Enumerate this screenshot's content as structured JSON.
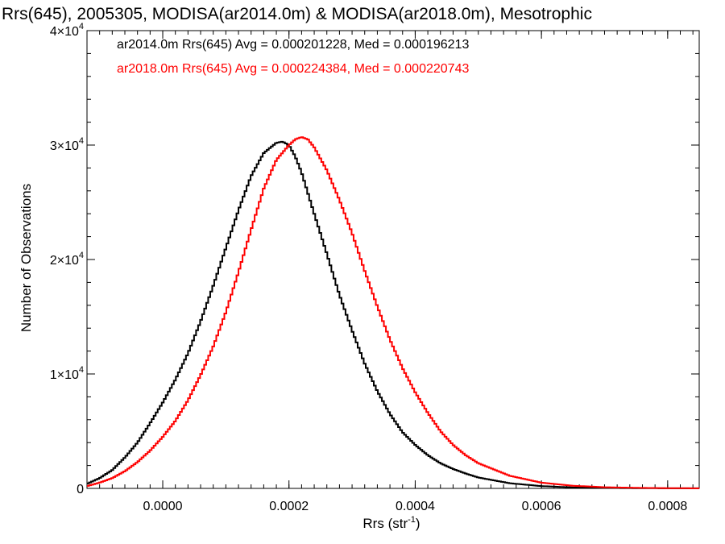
{
  "chart_data": {
    "type": "line",
    "title": "Rrs(645), 2005305, MODISA(ar2014.0m) & MODISA(ar2018.0m), Mesotrophic",
    "xlabel": "Rrs (str",
    "xlabel_sup": "-1",
    "xlabel_suffix": ")",
    "ylabel": "Number of Observations",
    "xlim": [
      -0.00012,
      0.00085
    ],
    "ylim": [
      0,
      40000
    ],
    "x_ticks": [
      {
        "value": 0.0,
        "label": "0.0000"
      },
      {
        "value": 0.0002,
        "label": "0.0002"
      },
      {
        "value": 0.0004,
        "label": "0.0004"
      },
      {
        "value": 0.0006,
        "label": "0.0006"
      },
      {
        "value": 0.0008,
        "label": "0.0008"
      }
    ],
    "y_ticks": [
      {
        "value": 0,
        "label": "0",
        "sup": ""
      },
      {
        "value": 10000,
        "label": "1×10",
        "sup": "4"
      },
      {
        "value": 20000,
        "label": "2×10",
        "sup": "4"
      },
      {
        "value": 30000,
        "label": "3×10",
        "sup": "4"
      },
      {
        "value": 40000,
        "label": "4×10",
        "sup": "4"
      }
    ],
    "series": [
      {
        "name": "ar2014.0m Rrs(645) Avg = 0.000201228, Med = 0.000196213",
        "color": "#000000",
        "x": [
          -0.00012,
          -0.0001,
          -8e-05,
          -6e-05,
          -4e-05,
          -2e-05,
          0.0,
          2e-05,
          4e-05,
          6e-05,
          8e-05,
          0.0001,
          0.00012,
          0.00014,
          0.00016,
          0.00018,
          0.00019,
          0.0002,
          0.00021,
          0.00022,
          0.00024,
          0.00026,
          0.00028,
          0.0003,
          0.00032,
          0.00034,
          0.00036,
          0.00038,
          0.0004,
          0.00042,
          0.00044,
          0.00046,
          0.00048,
          0.0005,
          0.00055,
          0.0006,
          0.00065,
          0.0007,
          0.00075,
          0.0008,
          0.00085
        ],
        "y": [
          400,
          900,
          1600,
          2700,
          4000,
          5700,
          7500,
          9500,
          11800,
          14600,
          17700,
          21000,
          24300,
          27300,
          29300,
          30200,
          30300,
          30000,
          29000,
          27600,
          24000,
          20500,
          16900,
          13800,
          10900,
          8500,
          6500,
          4900,
          3800,
          2900,
          2200,
          1700,
          1300,
          950,
          450,
          200,
          80,
          40,
          20,
          10,
          5
        ]
      },
      {
        "name": "ar2018.0m Rrs(645) Avg = 0.000224384, Med = 0.000220743",
        "color": "#ff0000",
        "x": [
          -0.00012,
          -0.0001,
          -8e-05,
          -6e-05,
          -4e-05,
          -2e-05,
          0.0,
          2e-05,
          4e-05,
          6e-05,
          8e-05,
          0.0001,
          0.00012,
          0.00014,
          0.00016,
          0.00018,
          0.0002,
          0.00021,
          0.00022,
          0.00023,
          0.00024,
          0.00026,
          0.00028,
          0.0003,
          0.00032,
          0.00034,
          0.00036,
          0.00038,
          0.0004,
          0.00042,
          0.00044,
          0.00046,
          0.00048,
          0.0005,
          0.00055,
          0.0006,
          0.00065,
          0.0007,
          0.00075,
          0.0008,
          0.00085
        ],
        "y": [
          200,
          500,
          900,
          1500,
          2300,
          3300,
          4500,
          5900,
          7700,
          9900,
          12400,
          15400,
          18900,
          22600,
          26200,
          28700,
          30000,
          30500,
          30700,
          30500,
          29800,
          27800,
          25200,
          22300,
          19000,
          15900,
          13000,
          10500,
          8400,
          6600,
          5000,
          3800,
          2900,
          2200,
          1100,
          500,
          230,
          100,
          50,
          20,
          10
        ]
      }
    ],
    "legend": "top-left inside",
    "grid": false
  }
}
